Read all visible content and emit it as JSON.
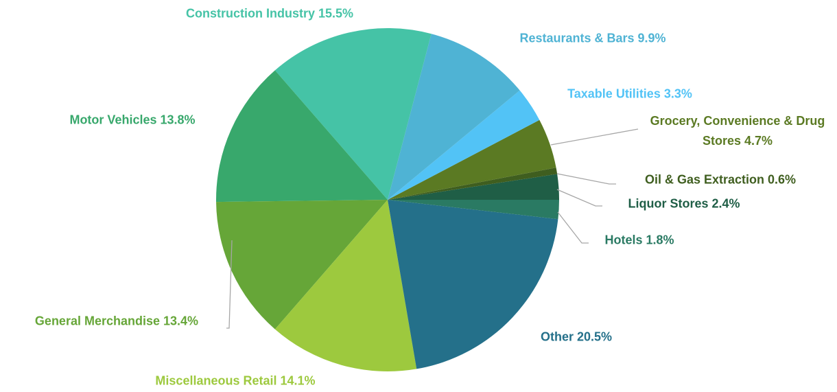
{
  "chart_data": {
    "type": "pie",
    "categories": [
      "Liquor Stores",
      "Oil & Gas Extraction",
      "Grocery, Convenience & Drug Stores",
      "Taxable Utilities",
      "Restaurants & Bars",
      "Construction Industry",
      "Motor Vehicles",
      "General Merchandise",
      "Miscellaneous Retail",
      "Other",
      "Hotels"
    ],
    "values": [
      2.4,
      0.6,
      4.7,
      3.3,
      9.9,
      15.5,
      13.8,
      13.4,
      14.1,
      20.5,
      1.8
    ],
    "value_labels": [
      "2.4%",
      "0.6%",
      "4.7%",
      "3.3%",
      "9.9%",
      "15.5%",
      "13.8%",
      "13.4%",
      "14.1%",
      "20.5%",
      "1.8%"
    ],
    "colors": [
      "#1f5e46",
      "#3f5e1f",
      "#5b7a23",
      "#52c3f6",
      "#4fb3d4",
      "#45c3a6",
      "#38a86c",
      "#66a638",
      "#9dc93e",
      "#24708a",
      "#2a7a63"
    ]
  }
}
